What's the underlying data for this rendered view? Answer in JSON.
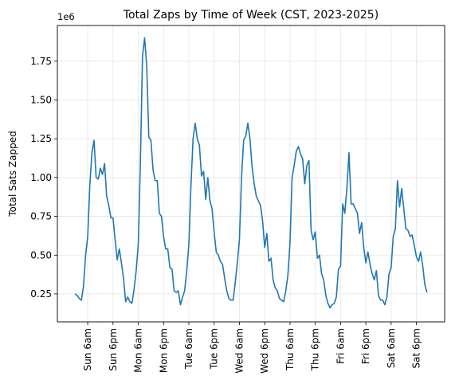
{
  "chart_data": {
    "type": "line",
    "title": "Total Zaps by Time of Week (CST, 2023-2025)",
    "xlabel": "",
    "ylabel": "Total Sats Zapped",
    "y_offset_label": "1e6",
    "grid": true,
    "x_unit": "hour of week (0 = Sun 0:00)",
    "xlim": [
      -8.4,
      175.4
    ],
    "ylim": [
      0.07,
      1.98
    ],
    "yticks": [
      0.25,
      0.5,
      0.75,
      1.0,
      1.25,
      1.5,
      1.75
    ],
    "ytick_labels": [
      "0.25",
      "0.50",
      "0.75",
      "1.00",
      "1.25",
      "1.50",
      "1.75"
    ],
    "xticks": [
      6,
      18,
      30,
      42,
      54,
      66,
      78,
      90,
      102,
      114,
      126,
      138,
      150,
      162
    ],
    "xtick_labels": [
      "Sun 6am",
      "Sun 6pm",
      "Mon 6am",
      "Mon 6pm",
      "Tue 6am",
      "Tue 6pm",
      "Wed 6am",
      "Wed 6pm",
      "Thu 6am",
      "Thu 6pm",
      "Fri 6am",
      "Fri 6pm",
      "Sat 6am",
      "Sat 6pm"
    ],
    "series": [
      {
        "color": "#1f77b4",
        "values": [
          0.25,
          0.24,
          0.22,
          0.21,
          0.3,
          0.5,
          0.62,
          0.95,
          1.16,
          1.24,
          1.0,
          0.99,
          1.06,
          1.02,
          1.09,
          0.88,
          0.82,
          0.74,
          0.74,
          0.6,
          0.47,
          0.54,
          0.45,
          0.35,
          0.2,
          0.23,
          0.2,
          0.19,
          0.28,
          0.4,
          0.57,
          1.1,
          1.78,
          1.9,
          1.72,
          1.26,
          1.24,
          1.05,
          0.98,
          0.98,
          0.77,
          0.75,
          0.62,
          0.54,
          0.54,
          0.42,
          0.41,
          0.27,
          0.26,
          0.27,
          0.18,
          0.23,
          0.27,
          0.4,
          0.57,
          0.95,
          1.25,
          1.35,
          1.25,
          1.21,
          1.01,
          1.04,
          0.86,
          1.0,
          0.85,
          0.8,
          0.65,
          0.52,
          0.5,
          0.46,
          0.44,
          0.35,
          0.27,
          0.22,
          0.21,
          0.21,
          0.32,
          0.45,
          0.6,
          1.0,
          1.24,
          1.27,
          1.35,
          1.25,
          1.07,
          0.96,
          0.88,
          0.85,
          0.82,
          0.72,
          0.55,
          0.64,
          0.46,
          0.48,
          0.34,
          0.29,
          0.27,
          0.22,
          0.21,
          0.2,
          0.27,
          0.37,
          0.58,
          1.0,
          1.08,
          1.17,
          1.2,
          1.15,
          1.12,
          0.96,
          1.08,
          1.11,
          0.66,
          0.6,
          0.65,
          0.48,
          0.5,
          0.38,
          0.34,
          0.24,
          0.19,
          0.16,
          0.18,
          0.19,
          0.23,
          0.41,
          0.43,
          0.83,
          0.77,
          0.93,
          1.16,
          0.83,
          0.83,
          0.8,
          0.77,
          0.64,
          0.71,
          0.55,
          0.45,
          0.52,
          0.44,
          0.38,
          0.34,
          0.4,
          0.24,
          0.21,
          0.21,
          0.18,
          0.23,
          0.38,
          0.42,
          0.62,
          0.67,
          0.98,
          0.81,
          0.93,
          0.8,
          0.67,
          0.66,
          0.62,
          0.63,
          0.56,
          0.49,
          0.46,
          0.52,
          0.43,
          0.31,
          0.26
        ]
      }
    ]
  }
}
